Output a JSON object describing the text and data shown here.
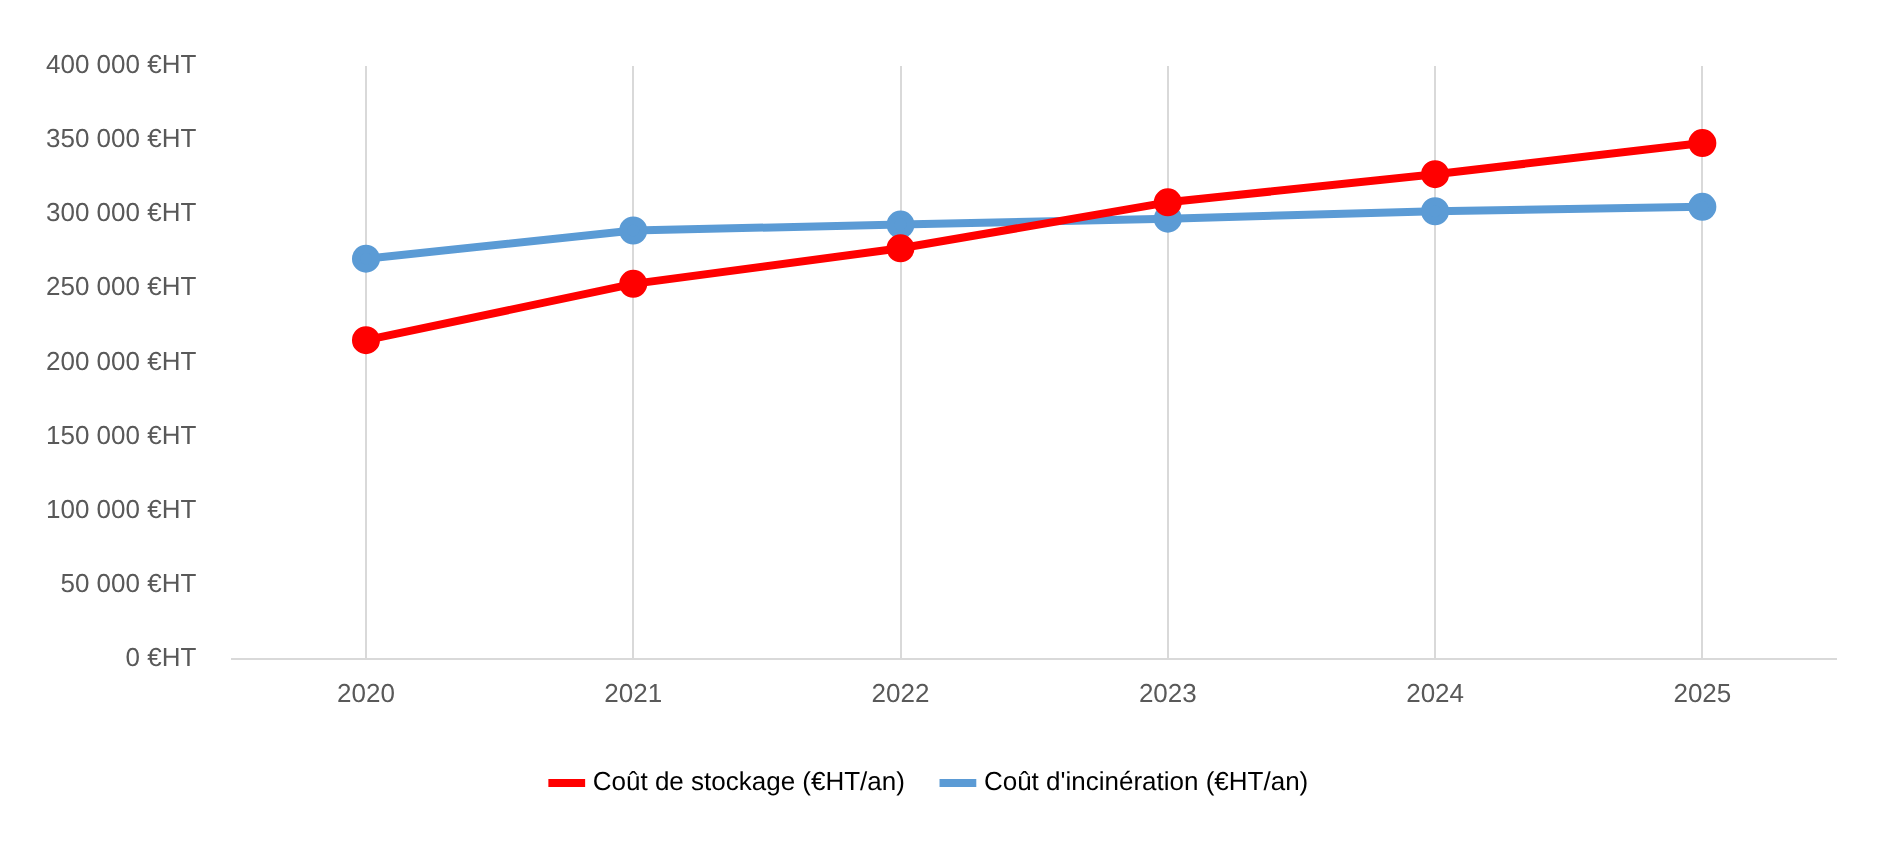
{
  "chart_data": {
    "type": "line",
    "categories": [
      "2020",
      "2021",
      "2022",
      "2023",
      "2024",
      "2025"
    ],
    "series": [
      {
        "name": "Coût de stockage (€HT/an)",
        "color": "#ff0000",
        "values": [
          215000,
          253000,
          277000,
          308000,
          327000,
          348000
        ]
      },
      {
        "name": "Coût d'incinération (€HT/an)",
        "color": "#5b9bd5",
        "values": [
          270000,
          289000,
          293000,
          297000,
          302000,
          305000
        ]
      }
    ],
    "ylim": [
      0,
      400000
    ],
    "yticks": [
      {
        "value": 0,
        "label": "0 €HT"
      },
      {
        "value": 50000,
        "label": "50 000 €HT"
      },
      {
        "value": 100000,
        "label": "100 000 €HT"
      },
      {
        "value": 150000,
        "label": "150 000 €HT"
      },
      {
        "value": 200000,
        "label": "200 000 €HT"
      },
      {
        "value": 250000,
        "label": "250 000 €HT"
      },
      {
        "value": 300000,
        "label": "300 000 €HT"
      },
      {
        "value": 350000,
        "label": "350 000 €HT"
      },
      {
        "value": 400000,
        "label": "400 000 €HT"
      }
    ],
    "grid": "x",
    "legend": "bottom",
    "marker": "circle",
    "line_style": "solid"
  }
}
